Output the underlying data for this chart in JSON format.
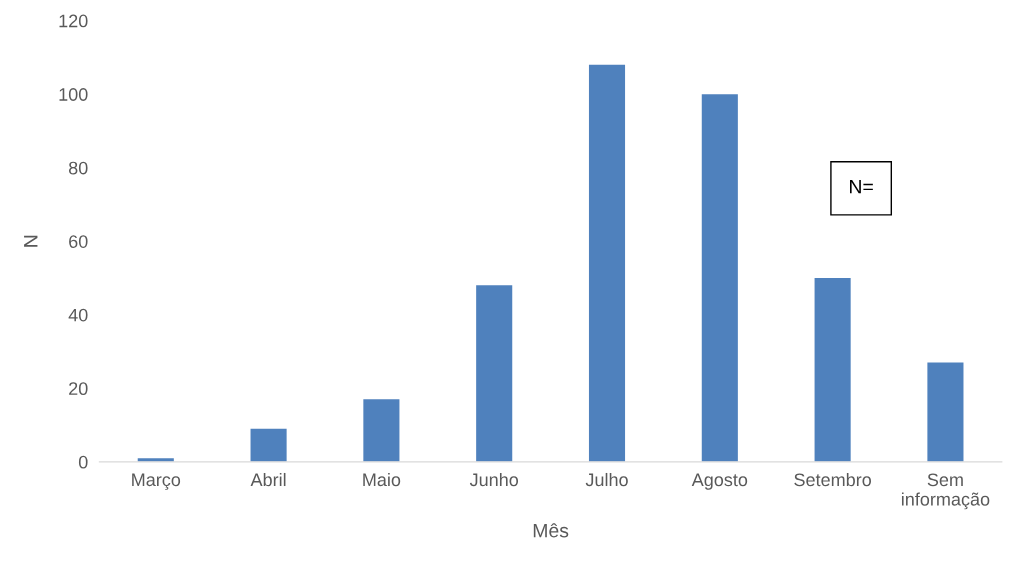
{
  "chart_data": {
    "type": "bar",
    "xlabel": "Mês",
    "ylabel": "N",
    "categories": [
      "Março",
      "Abril",
      "Maio",
      "Junho",
      "Julho",
      "Agosto",
      "Setembro",
      "Sem\ninformação"
    ],
    "values": [
      1,
      9,
      17,
      48,
      108,
      100,
      50,
      27
    ],
    "color": "#4f81bd",
    "ylim": [
      0,
      120
    ],
    "yticks": [
      0,
      20,
      40,
      60,
      80,
      100,
      120
    ],
    "grid": false,
    "annotations": [
      "N="
    ]
  }
}
